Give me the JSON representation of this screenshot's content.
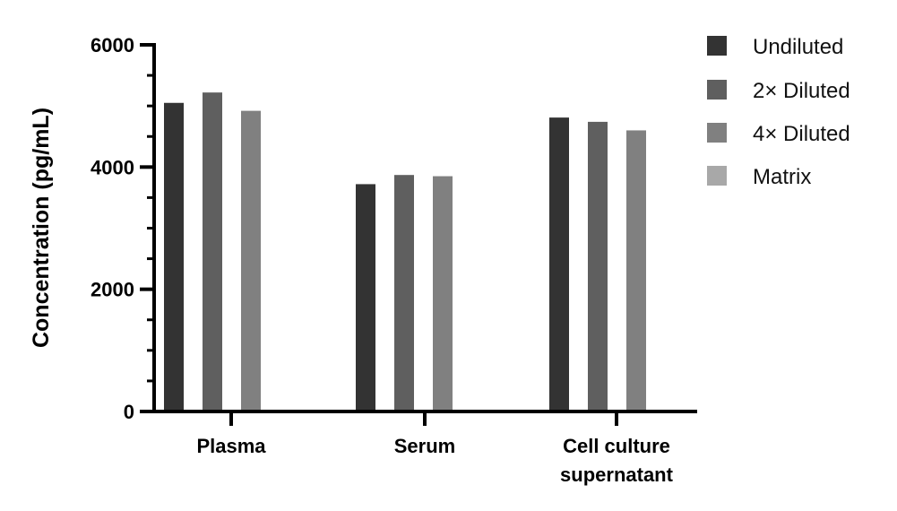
{
  "chart_data": {
    "type": "bar",
    "categories": [
      [
        "Plasma"
      ],
      [
        "Serum"
      ],
      [
        "Cell culture",
        "supernatant"
      ]
    ],
    "series": [
      {
        "name": "Undiluted",
        "color": "#333333",
        "values": [
          5050,
          3720,
          4810
        ]
      },
      {
        "name": "2× Diluted",
        "color": "#5f5f5f",
        "values": [
          5220,
          3870,
          4740
        ]
      },
      {
        "name": "4× Diluted",
        "color": "#808080",
        "values": [
          4920,
          3850,
          4600
        ]
      },
      {
        "name": "Matrix",
        "color": "#a8a8a8",
        "values": [
          20,
          20,
          20
        ]
      }
    ],
    "title": "",
    "xlabel": "",
    "ylabel": "Concentration (pg/mL)",
    "ylim": [
      0,
      6000
    ],
    "yticks": [
      0,
      2000,
      4000,
      6000
    ],
    "ytick_labels": [
      "0",
      "2000",
      "4000",
      "6000"
    ],
    "grid": false,
    "legend": "top-right"
  }
}
